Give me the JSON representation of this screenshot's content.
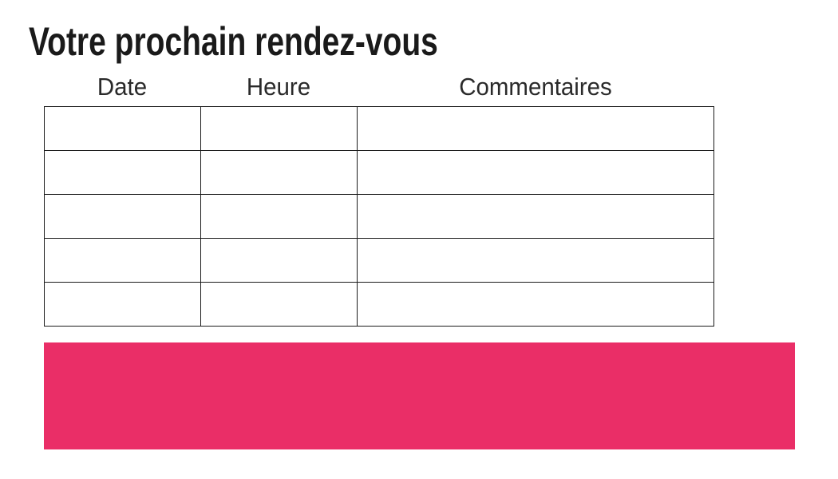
{
  "title": "Votre prochain rendez-vous",
  "table": {
    "headers": [
      "Date",
      "Heure",
      "Commentaires"
    ],
    "rows": [
      [
        "",
        "",
        ""
      ],
      [
        "",
        "",
        ""
      ],
      [
        "",
        "",
        ""
      ],
      [
        "",
        "",
        ""
      ],
      [
        "",
        "",
        ""
      ]
    ]
  },
  "banner": {
    "text": ""
  },
  "colors": {
    "accent_pink": "#EA2E67",
    "table_border": "#1B1B1B",
    "title_text": "#1A1A1A",
    "header_text": "#2A2A2A"
  }
}
